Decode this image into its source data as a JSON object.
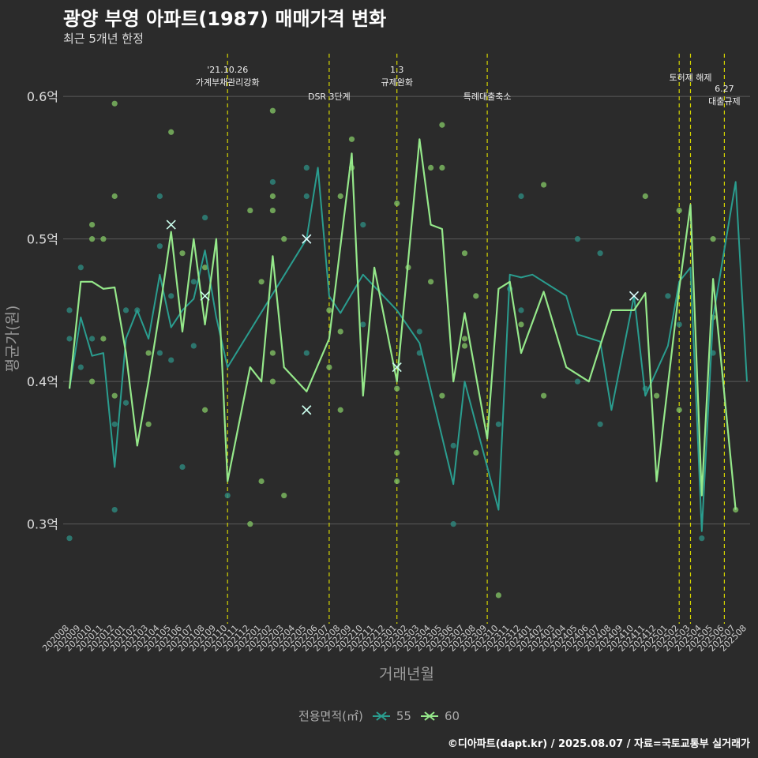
{
  "title": "광양 부영 아파트(1987) 매매가격 변화",
  "subtitle": "최근 5개년 한정",
  "caption": "©디아파트(dapt.kr) / 2025.08.07 / 자료=국토교통부 실거래가",
  "colors": {
    "s55": "#2a9d8f",
    "s60": "#95e88a",
    "vline": "#d4d400",
    "grid": "#5a5a5a",
    "dot55": "#2e8a7f",
    "dot60": "#7fbf63"
  },
  "chart_data": {
    "type": "line",
    "xlabel": "거래년월",
    "ylabel": "평균가(원)",
    "ylim": [
      0.23,
      0.63
    ],
    "yticks": [
      0.3,
      0.4,
      0.5,
      0.6
    ],
    "ytick_labels": [
      "0.3억",
      "0.4억",
      "0.5억",
      "0.6억"
    ],
    "categories": [
      "202008",
      "202009",
      "202010",
      "202011",
      "202012",
      "202101",
      "202102",
      "202103",
      "202104",
      "202105",
      "202106",
      "202107",
      "202108",
      "202109",
      "202110",
      "202111",
      "202112",
      "202201",
      "202202",
      "202203",
      "202204",
      "202205",
      "202206",
      "202207",
      "202208",
      "202209",
      "202210",
      "202211",
      "202212",
      "202301",
      "202302",
      "202303",
      "202304",
      "202305",
      "202306",
      "202307",
      "202308",
      "202309",
      "202310",
      "202311",
      "202312",
      "202401",
      "202402",
      "202403",
      "202404",
      "202405",
      "202406",
      "202407",
      "202408",
      "202409",
      "202410",
      "202411",
      "202412",
      "202501",
      "202502",
      "202503",
      "202504",
      "202505",
      "202506",
      "202507",
      "202508"
    ],
    "legend_title": "전용면적(㎡)",
    "series": [
      {
        "name": "55",
        "points": [
          [
            0,
            0.395
          ],
          [
            1,
            0.445
          ],
          [
            2,
            0.418
          ],
          [
            3,
            0.42
          ],
          [
            4,
            0.34
          ],
          [
            5,
            0.43
          ],
          [
            6,
            0.45
          ],
          [
            7,
            0.43
          ],
          [
            8,
            0.475
          ],
          [
            9,
            0.438
          ],
          [
            10,
            0.45
          ],
          [
            11,
            0.458
          ],
          [
            12,
            0.492
          ],
          [
            13,
            0.445
          ],
          [
            14,
            0.41
          ],
          [
            21,
            0.5
          ],
          [
            22,
            0.55
          ],
          [
            23,
            0.46
          ],
          [
            24,
            0.448
          ],
          [
            26,
            0.475
          ],
          [
            29,
            0.45
          ],
          [
            31,
            0.427
          ],
          [
            34,
            0.328
          ],
          [
            35,
            0.4
          ],
          [
            38,
            0.31
          ],
          [
            39,
            0.475
          ],
          [
            40,
            0.473
          ],
          [
            41,
            0.475
          ],
          [
            44,
            0.46
          ],
          [
            45,
            0.433
          ],
          [
            47,
            0.428
          ],
          [
            48,
            0.38
          ],
          [
            50,
            0.46
          ],
          [
            51,
            0.39
          ],
          [
            53,
            0.425
          ],
          [
            54,
            0.47
          ],
          [
            55,
            0.48
          ],
          [
            56,
            0.295
          ],
          [
            57,
            0.445
          ],
          [
            59,
            0.54
          ],
          [
            60,
            0.4
          ]
        ]
      },
      {
        "name": "60",
        "points": [
          [
            0,
            0.395
          ],
          [
            1,
            0.47
          ],
          [
            2,
            0.47
          ],
          [
            3,
            0.465
          ],
          [
            4,
            0.466
          ],
          [
            5,
            0.42
          ],
          [
            6,
            0.355
          ],
          [
            7,
            0.4
          ],
          [
            8,
            0.45
          ],
          [
            9,
            0.505
          ],
          [
            10,
            0.435
          ],
          [
            11,
            0.5
          ],
          [
            12,
            0.44
          ],
          [
            13,
            0.5
          ],
          [
            14,
            0.33
          ],
          [
            16,
            0.41
          ],
          [
            17,
            0.4
          ],
          [
            18,
            0.488
          ],
          [
            19,
            0.41
          ],
          [
            21,
            0.393
          ],
          [
            23,
            0.43
          ],
          [
            25,
            0.56
          ],
          [
            26,
            0.39
          ],
          [
            27,
            0.48
          ],
          [
            29,
            0.4
          ],
          [
            31,
            0.57
          ],
          [
            32,
            0.51
          ],
          [
            33,
            0.507
          ],
          [
            34,
            0.4
          ],
          [
            35,
            0.448
          ],
          [
            37,
            0.36
          ],
          [
            38,
            0.465
          ],
          [
            39,
            0.47
          ],
          [
            40,
            0.42
          ],
          [
            42,
            0.463
          ],
          [
            44,
            0.41
          ],
          [
            46,
            0.4
          ],
          [
            48,
            0.45
          ],
          [
            50,
            0.45
          ],
          [
            51,
            0.462
          ],
          [
            52,
            0.33
          ],
          [
            54,
            0.465
          ],
          [
            55,
            0.524
          ],
          [
            56,
            0.32
          ],
          [
            57,
            0.472
          ],
          [
            59,
            0.31
          ]
        ]
      }
    ],
    "scatter": [
      {
        "x": 0,
        "y": 0.29,
        "s": "55"
      },
      {
        "x": 0,
        "y": 0.45,
        "s": "55"
      },
      {
        "x": 0,
        "y": 0.43,
        "s": "55"
      },
      {
        "x": 1,
        "y": 0.41,
        "s": "55"
      },
      {
        "x": 1,
        "y": 0.48,
        "s": "55"
      },
      {
        "x": 2,
        "y": 0.4,
        "s": "60"
      },
      {
        "x": 2,
        "y": 0.51,
        "s": "60"
      },
      {
        "x": 2,
        "y": 0.5,
        "s": "60"
      },
      {
        "x": 2,
        "y": 0.43,
        "s": "55"
      },
      {
        "x": 3,
        "y": 0.5,
        "s": "60"
      },
      {
        "x": 3,
        "y": 0.43,
        "s": "60"
      },
      {
        "x": 4,
        "y": 0.595,
        "s": "60"
      },
      {
        "x": 4,
        "y": 0.53,
        "s": "60"
      },
      {
        "x": 4,
        "y": 0.31,
        "s": "55"
      },
      {
        "x": 4,
        "y": 0.37,
        "s": "55"
      },
      {
        "x": 4,
        "y": 0.39,
        "s": "60"
      },
      {
        "x": 5,
        "y": 0.385,
        "s": "55"
      },
      {
        "x": 5,
        "y": 0.45,
        "s": "55"
      },
      {
        "x": 6,
        "y": 0.45,
        "s": "55"
      },
      {
        "x": 7,
        "y": 0.37,
        "s": "60"
      },
      {
        "x": 7,
        "y": 0.42,
        "s": "60"
      },
      {
        "x": 8,
        "y": 0.53,
        "s": "55"
      },
      {
        "x": 8,
        "y": 0.495,
        "s": "55"
      },
      {
        "x": 8,
        "y": 0.42,
        "s": "55"
      },
      {
        "x": 9,
        "y": 0.575,
        "s": "60"
      },
      {
        "x": 9,
        "y": 0.46,
        "s": "55"
      },
      {
        "x": 9,
        "y": 0.415,
        "s": "55"
      },
      {
        "x": 10,
        "y": 0.49,
        "s": "60"
      },
      {
        "x": 10,
        "y": 0.34,
        "s": "55"
      },
      {
        "x": 11,
        "y": 0.425,
        "s": "55"
      },
      {
        "x": 11,
        "y": 0.47,
        "s": "55"
      },
      {
        "x": 12,
        "y": 0.515,
        "s": "55"
      },
      {
        "x": 12,
        "y": 0.38,
        "s": "60"
      },
      {
        "x": 12,
        "y": 0.48,
        "s": "60"
      },
      {
        "x": 14,
        "y": 0.32,
        "s": "55"
      },
      {
        "x": 16,
        "y": 0.52,
        "s": "60"
      },
      {
        "x": 16,
        "y": 0.3,
        "s": "60"
      },
      {
        "x": 17,
        "y": 0.47,
        "s": "60"
      },
      {
        "x": 17,
        "y": 0.33,
        "s": "60"
      },
      {
        "x": 18,
        "y": 0.59,
        "s": "60"
      },
      {
        "x": 18,
        "y": 0.54,
        "s": "55"
      },
      {
        "x": 18,
        "y": 0.53,
        "s": "60"
      },
      {
        "x": 18,
        "y": 0.52,
        "s": "60"
      },
      {
        "x": 18,
        "y": 0.42,
        "s": "60"
      },
      {
        "x": 18,
        "y": 0.4,
        "s": "60"
      },
      {
        "x": 19,
        "y": 0.5,
        "s": "60"
      },
      {
        "x": 19,
        "y": 0.32,
        "s": "60"
      },
      {
        "x": 21,
        "y": 0.55,
        "s": "55"
      },
      {
        "x": 21,
        "y": 0.53,
        "s": "55"
      },
      {
        "x": 21,
        "y": 0.42,
        "s": "55"
      },
      {
        "x": 23,
        "y": 0.45,
        "s": "60"
      },
      {
        "x": 23,
        "y": 0.41,
        "s": "60"
      },
      {
        "x": 24,
        "y": 0.53,
        "s": "60"
      },
      {
        "x": 24,
        "y": 0.435,
        "s": "60"
      },
      {
        "x": 24,
        "y": 0.38,
        "s": "60"
      },
      {
        "x": 25,
        "y": 0.57,
        "s": "60"
      },
      {
        "x": 25,
        "y": 0.55,
        "s": "60"
      },
      {
        "x": 26,
        "y": 0.51,
        "s": "55"
      },
      {
        "x": 26,
        "y": 0.44,
        "s": "55"
      },
      {
        "x": 29,
        "y": 0.525,
        "s": "60"
      },
      {
        "x": 29,
        "y": 0.35,
        "s": "60"
      },
      {
        "x": 29,
        "y": 0.33,
        "s": "60"
      },
      {
        "x": 29,
        "y": 0.395,
        "s": "60"
      },
      {
        "x": 30,
        "y": 0.48,
        "s": "60"
      },
      {
        "x": 31,
        "y": 0.435,
        "s": "55"
      },
      {
        "x": 31,
        "y": 0.42,
        "s": "55"
      },
      {
        "x": 32,
        "y": 0.55,
        "s": "60"
      },
      {
        "x": 32,
        "y": 0.47,
        "s": "60"
      },
      {
        "x": 33,
        "y": 0.58,
        "s": "60"
      },
      {
        "x": 33,
        "y": 0.55,
        "s": "60"
      },
      {
        "x": 33,
        "y": 0.39,
        "s": "60"
      },
      {
        "x": 34,
        "y": 0.355,
        "s": "55"
      },
      {
        "x": 34,
        "y": 0.3,
        "s": "55"
      },
      {
        "x": 35,
        "y": 0.49,
        "s": "60"
      },
      {
        "x": 35,
        "y": 0.43,
        "s": "60"
      },
      {
        "x": 35,
        "y": 0.425,
        "s": "60"
      },
      {
        "x": 36,
        "y": 0.46,
        "s": "60"
      },
      {
        "x": 36,
        "y": 0.35,
        "s": "60"
      },
      {
        "x": 38,
        "y": 0.37,
        "s": "55"
      },
      {
        "x": 38,
        "y": 0.25,
        "s": "60"
      },
      {
        "x": 39,
        "y": 0.465,
        "s": "55"
      },
      {
        "x": 40,
        "y": 0.53,
        "s": "55"
      },
      {
        "x": 40,
        "y": 0.45,
        "s": "55"
      },
      {
        "x": 40,
        "y": 0.44,
        "s": "60"
      },
      {
        "x": 42,
        "y": 0.538,
        "s": "60"
      },
      {
        "x": 42,
        "y": 0.39,
        "s": "60"
      },
      {
        "x": 45,
        "y": 0.5,
        "s": "55"
      },
      {
        "x": 45,
        "y": 0.4,
        "s": "55"
      },
      {
        "x": 47,
        "y": 0.49,
        "s": "55"
      },
      {
        "x": 47,
        "y": 0.37,
        "s": "55"
      },
      {
        "x": 51,
        "y": 0.53,
        "s": "60"
      },
      {
        "x": 51,
        "y": 0.395,
        "s": "55"
      },
      {
        "x": 52,
        "y": 0.39,
        "s": "60"
      },
      {
        "x": 53,
        "y": 0.46,
        "s": "55"
      },
      {
        "x": 54,
        "y": 0.52,
        "s": "60"
      },
      {
        "x": 54,
        "y": 0.38,
        "s": "60"
      },
      {
        "x": 54,
        "y": 0.44,
        "s": "55"
      },
      {
        "x": 56,
        "y": 0.29,
        "s": "55"
      },
      {
        "x": 57,
        "y": 0.5,
        "s": "60"
      },
      {
        "x": 57,
        "y": 0.42,
        "s": "55"
      },
      {
        "x": 57,
        "y": 0.445,
        "s": "60"
      },
      {
        "x": 59,
        "y": 0.31,
        "s": "60"
      }
    ],
    "cross_markers": [
      {
        "x": 9,
        "y": 0.51,
        "s": "60"
      },
      {
        "x": 12,
        "y": 0.46,
        "s": "60"
      },
      {
        "x": 21,
        "y": 0.5,
        "s": "55"
      },
      {
        "x": 21,
        "y": 0.38,
        "s": "60"
      },
      {
        "x": 29,
        "y": 0.41,
        "s": "60"
      },
      {
        "x": 50,
        "y": 0.46,
        "s": "55"
      }
    ],
    "events": [
      {
        "x": 14,
        "label": "'21.10.26\n가계부채관리강화",
        "pos": "high"
      },
      {
        "x": 23,
        "label": "DSR 3단계",
        "pos": "low"
      },
      {
        "x": 29,
        "label": "1.3\n규제완화",
        "pos": "high"
      },
      {
        "x": 37,
        "label": "특례대출축소",
        "pos": "low"
      },
      {
        "x": 54,
        "label": "",
        "pos": "high"
      },
      {
        "x": 55,
        "label": "토허제 해제",
        "pos": "mid"
      },
      {
        "x": 58,
        "label": "6.27\n대출규제",
        "pos": "lower"
      }
    ],
    "grid": true,
    "legend_position": "bottom"
  }
}
